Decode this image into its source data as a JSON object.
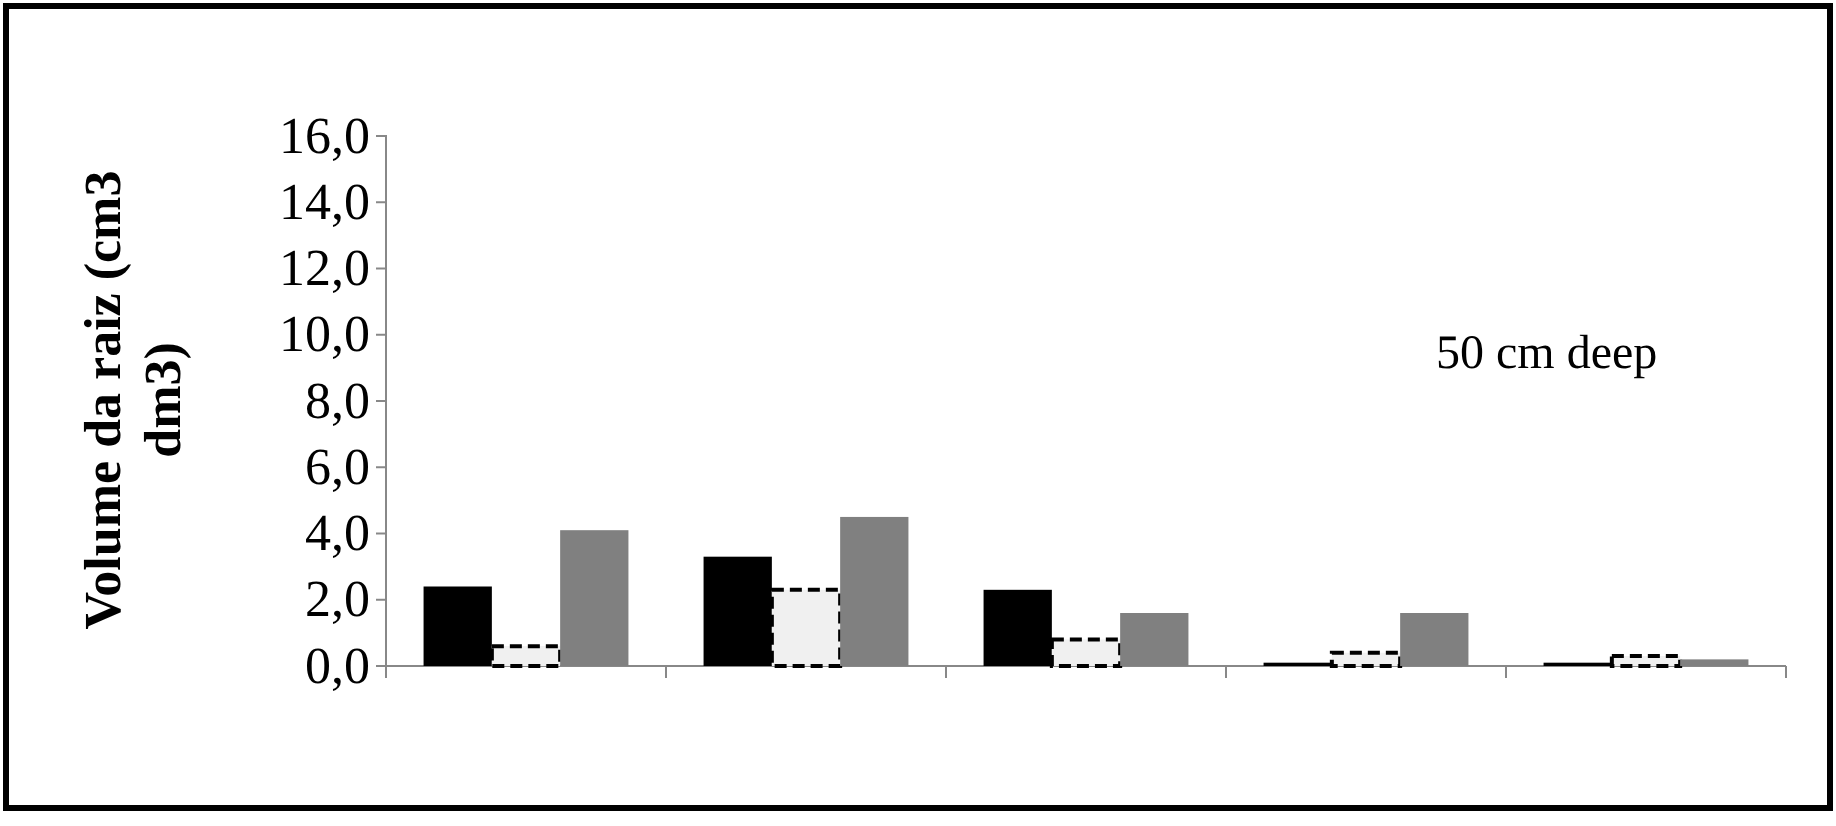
{
  "chart_data": {
    "type": "bar",
    "ylabel": "Volume da raiz (cm3 dm3)",
    "annotations": [
      "50 cm deep"
    ],
    "categories": [
      null,
      null,
      null,
      null,
      null
    ],
    "series": [
      {
        "color": "#000000",
        "values": [
          2.4,
          3.3,
          2.3,
          0.1,
          0.1
        ]
      },
      {
        "color": "#f0f0f0",
        "line_style": "dashed",
        "values": [
          0.6,
          2.3,
          0.8,
          0.4,
          0.3
        ]
      },
      {
        "color": "#808080",
        "values": [
          4.1,
          4.5,
          1.6,
          1.6,
          0.2
        ]
      }
    ],
    "ylim": [
      0,
      16
    ],
    "yticks": [
      {
        "value": 0,
        "label": "0,0"
      },
      {
        "value": 2,
        "label": "2,0"
      },
      {
        "value": 4,
        "label": "4,0"
      },
      {
        "value": 6,
        "label": "6,0"
      },
      {
        "value": 8,
        "label": "8,0"
      },
      {
        "value": 10,
        "label": "10,0"
      },
      {
        "value": 12,
        "label": "12,0"
      },
      {
        "value": 14,
        "label": "14,0"
      },
      {
        "value": 16,
        "label": "16,0"
      }
    ],
    "grid": false
  }
}
